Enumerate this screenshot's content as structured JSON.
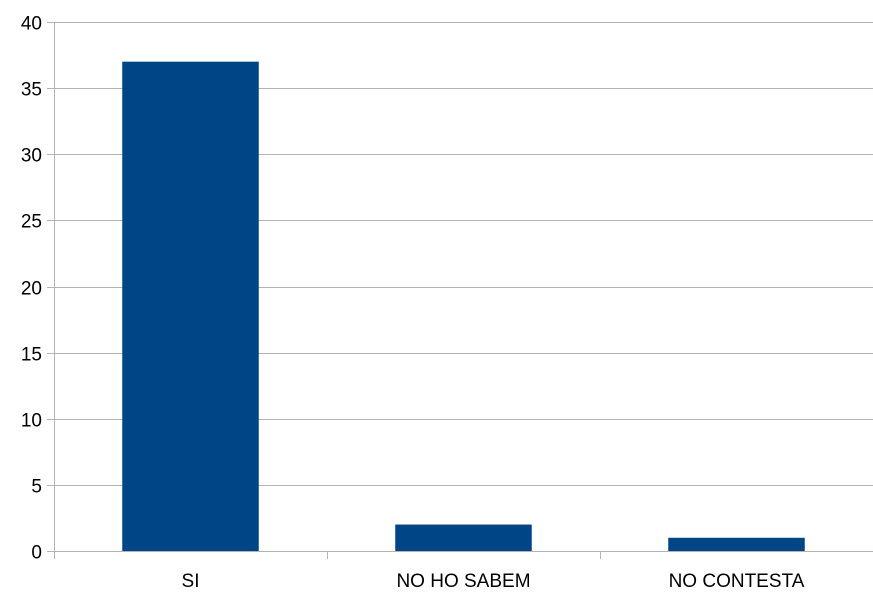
{
  "chart_data": {
    "type": "bar",
    "categories": [
      "SI",
      "NO HO SABEM",
      "NO CONTESTA"
    ],
    "values": [
      37,
      2,
      1
    ],
    "ylim": [
      0,
      40
    ],
    "yticks": [
      0,
      5,
      10,
      15,
      20,
      25,
      30,
      35,
      40
    ],
    "grid": true,
    "legend": "none",
    "colors": {
      "bar": "#004586",
      "grid": "#b3b3b3",
      "axis": "#b3b3b3"
    }
  }
}
